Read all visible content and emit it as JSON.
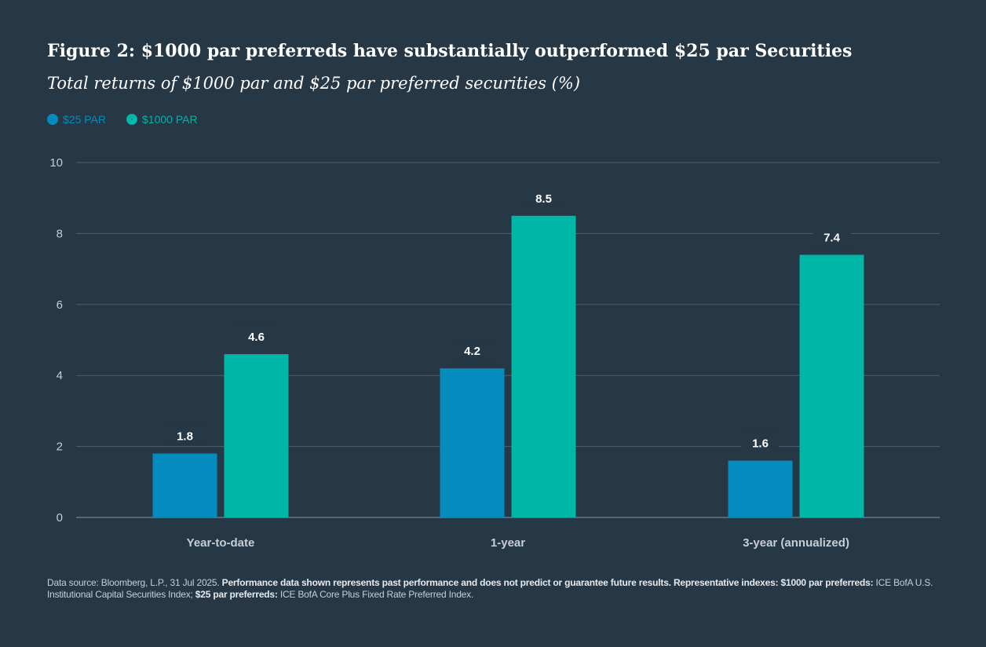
{
  "title": "Figure 2: $1000 par preferreds have substantially outperformed $25 par Securities",
  "subtitle": "Total returns of $1000 par and $25 par preferred securities (%)",
  "colors": {
    "background": "#263746",
    "par25": "#058cbf",
    "par1000": "#00b6a6",
    "grid": "#4f5f6d",
    "axis_text": "#c7ced6"
  },
  "chart_data": {
    "type": "bar",
    "categories": [
      "Year-to-date",
      "1-year",
      "3-year (annualized)"
    ],
    "series": [
      {
        "name": "$25 PAR",
        "values": [
          1.8,
          4.2,
          1.6
        ],
        "labels": [
          "1.8",
          "4.2",
          "1.6"
        ]
      },
      {
        "name": "$1000 PAR",
        "values": [
          4.6,
          8.5,
          7.4
        ],
        "labels": [
          "4.6",
          "8.5",
          "7.4"
        ]
      }
    ],
    "yticks": [
      0,
      2,
      4,
      6,
      8,
      10
    ],
    "ylim": [
      0,
      10
    ],
    "title": "Figure 2: $1000 par preferreds have substantially outperformed $25 par Securities",
    "xlabel": "",
    "ylabel": "",
    "legend_position": "top-left"
  },
  "footnote": {
    "part1": "Data source: Bloomberg, L.P., 31 Jul 2025. ",
    "bold1": "Performance data shown represents past performance and does not predict or guarantee future results. Representative indexes: $1000 par preferreds:",
    "part2": " ICE BofA U.S. Institutional Capital Securities Index; ",
    "bold2": "$25 par preferreds:",
    "part3": " ICE BofA Core Plus Fixed Rate Preferred Index."
  }
}
